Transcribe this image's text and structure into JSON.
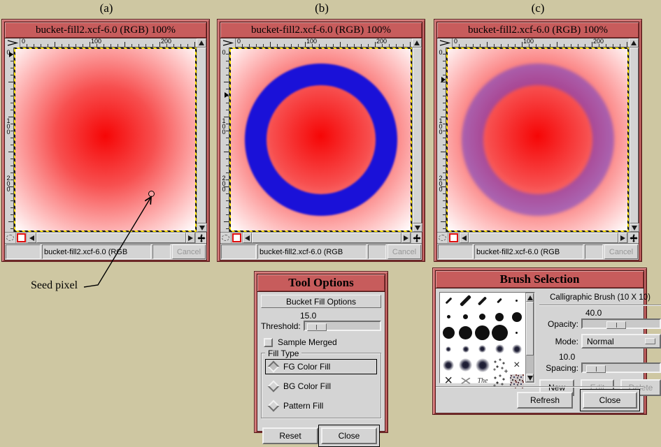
{
  "figure": {
    "labels": [
      "(a)",
      "(b)",
      "(c)"
    ]
  },
  "window": {
    "title": "bucket-fill2.xcf-6.0 (RGB) 100%",
    "h_ruler_labels": [
      "0",
      "100",
      "200"
    ],
    "v_ruler_labels": [
      "0",
      "100",
      "200"
    ],
    "status_filename": "bucket-fill2.xcf-6.0 (RGB",
    "cancel_label": "Cancel"
  },
  "annotation": {
    "label": "Seed pixel"
  },
  "tool_options": {
    "title": "Tool Options",
    "header": "Bucket Fill Options",
    "threshold_label": "Threshold:",
    "threshold_value": "15.0",
    "sample_merged_label": "Sample Merged",
    "fill_type_label": "Fill Type",
    "options": [
      {
        "label": "FG Color Fill",
        "selected": true
      },
      {
        "label": "BG Color Fill",
        "selected": false
      },
      {
        "label": "Pattern Fill",
        "selected": false
      }
    ],
    "reset_label": "Reset",
    "close_label": "Close"
  },
  "brush_selection": {
    "title": "Brush Selection",
    "brush_name": "Calligraphic Brush  (10 X 10)",
    "opacity_label": "Opacity:",
    "opacity_value": "40.0",
    "mode_label": "Mode:",
    "mode_value": "Normal",
    "spacing_label": "Spacing:",
    "spacing_value": "10.0",
    "new_label": "New",
    "edit_label": "Edit",
    "delete_label": "Delete",
    "refresh_label": "Refresh",
    "close_label": "Close",
    "script_cell_text": "The",
    "grid_cells": [
      "slash-s",
      "slash-l",
      "slash-m",
      "slash-xs",
      "dot-1",
      "dot-2",
      "dot-3",
      "dot-4",
      "dot-5",
      "dot-6",
      "dot-7",
      "dot-8",
      "dot-9",
      "dot-10",
      "dot-1b",
      "fuzzy-1",
      "fuzzy-2",
      "fuzzy-2b",
      "fuzzy-3",
      "fuzzy-3b",
      "fuzzy-4",
      "fuzzy-5",
      "fuzzy-5b",
      "scatter",
      "x-s",
      "x-l",
      "vee",
      "script",
      "scatter2",
      "speckle"
    ]
  },
  "colors": {
    "page_bg": "#cec7a2",
    "frame_salmon": "#ca6a6a",
    "titlebar_red": "#c75c5c",
    "dialog_gray": "#d4d4d4",
    "canvas_center_red": "#f60606",
    "ring_blue": "#1a11d8",
    "ring_translucent": "rgba(74,54,224,0.45)",
    "layer_boundary_yellow": "#ffe300",
    "quickmask_red": "#e01010"
  }
}
